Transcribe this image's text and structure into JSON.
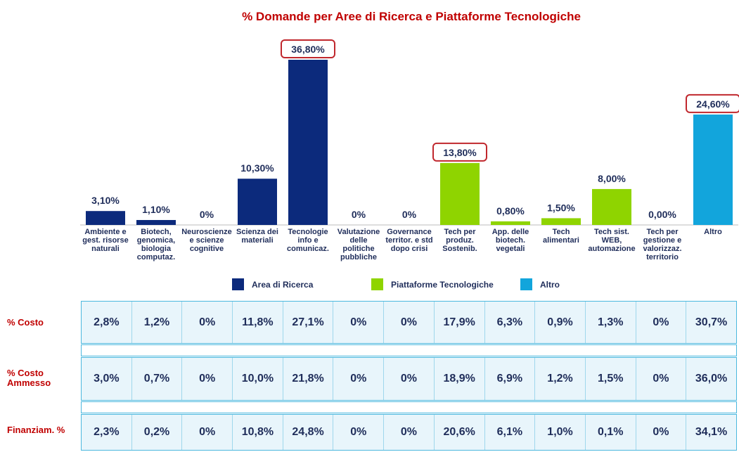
{
  "chart_data": {
    "type": "bar",
    "title": "% Domande per Aree di Ricerca e Piattaforme Tecnologiche",
    "categories": [
      "Ambiente e gest. risorse naturali",
      "Biotech, genomica, biologia computaz.",
      "Neuroscienze e scienze cognitive",
      "Scienza dei materiali",
      "Tecnologie info e comunicaz.",
      "Valutazione delle politiche pubbliche",
      "Governance territor. e std dopo crisi",
      "Tech per produz. Sostenib.",
      "App. delle biotech. vegetali",
      "Tech alimentari",
      "Tech sist. WEB, automazione",
      "Tech per gestione e valorizzaz. territorio",
      "Altro"
    ],
    "series": [
      {
        "name": "Area di Ricerca",
        "color": "#0c2a7c",
        "values": [
          3.1,
          1.1,
          0,
          10.3,
          36.8,
          0,
          0,
          null,
          null,
          null,
          null,
          null,
          null
        ],
        "value_labels": [
          "3,10%",
          "1,10%",
          "0%",
          "10,30%",
          "36,80%",
          "0%",
          "0%",
          null,
          null,
          null,
          null,
          null,
          null
        ]
      },
      {
        "name": "Piattaforme Tecnologiche",
        "color": "#8fd400",
        "values": [
          null,
          null,
          null,
          null,
          null,
          null,
          null,
          13.8,
          0.8,
          1.5,
          8.0,
          0,
          null
        ],
        "value_labels": [
          null,
          null,
          null,
          null,
          null,
          null,
          null,
          "13,80%",
          "0,80%",
          "1,50%",
          "8,00%",
          "0,00%",
          null
        ]
      },
      {
        "name": "Altro",
        "color": "#12a5dc",
        "values": [
          null,
          null,
          null,
          null,
          null,
          null,
          null,
          null,
          null,
          null,
          null,
          null,
          24.6
        ],
        "value_labels": [
          null,
          null,
          null,
          null,
          null,
          null,
          null,
          null,
          null,
          null,
          null,
          null,
          "24,60%"
        ]
      }
    ]
  },
  "table": {
    "rows": [
      {
        "label": "% Costo",
        "cells": [
          "2,8%",
          "1,2%",
          "0%",
          "11,8%",
          "27,1%",
          "0%",
          "0%",
          "17,9%",
          "6,3%",
          "0,9%",
          "1,3%",
          "0%",
          "30,7%"
        ]
      },
      {
        "label": "% Costo Ammesso",
        "cells": [
          "3,0%",
          "0,7%",
          "0%",
          "10,0%",
          "21,8%",
          "0%",
          "0%",
          "18,9%",
          "6,9%",
          "1,2%",
          "1,5%",
          "0%",
          "36,0%"
        ]
      },
      {
        "label": "Finanziam. %",
        "cells": [
          "2,3%",
          "0,2%",
          "0%",
          "10,8%",
          "24,8%",
          "0%",
          "0%",
          "20,6%",
          "6,1%",
          "1,0%",
          "0,1%",
          "0%",
          "34,1%"
        ]
      }
    ]
  }
}
